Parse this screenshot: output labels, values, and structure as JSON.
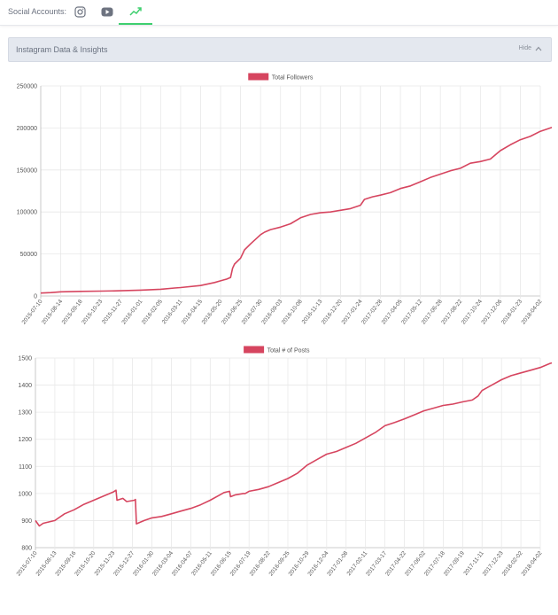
{
  "header": {
    "social_label": "Social Accounts:",
    "tabs": [
      {
        "name": "instagram-icon",
        "active": false
      },
      {
        "name": "youtube-icon",
        "active": false
      },
      {
        "name": "insights-icon",
        "active": true
      }
    ],
    "accent_color": "#3ecf6e"
  },
  "panel": {
    "title": "Instagram Data & Insights",
    "hide_label": "Hide"
  },
  "chart_data": [
    {
      "type": "line",
      "legend": "Total Followers",
      "legend_placement": "top-center",
      "color": "#d6455f",
      "grid": true,
      "ylim": [
        0,
        250000
      ],
      "yticks": [
        "0",
        "50000",
        "100000",
        "150000",
        "200000",
        "250000"
      ],
      "xticks": [
        "2015-07-10",
        "2015-08-14",
        "2015-09-18",
        "2015-10-23",
        "2015-11-27",
        "2016-01-01",
        "2016-02-05",
        "2016-03-11",
        "2016-04-15",
        "2016-05-20",
        "2016-06-25",
        "2016-07-30",
        "2016-09-03",
        "2016-10-08",
        "2016-11-13",
        "2016-12-20",
        "2017-01-24",
        "2017-02-28",
        "2017-04-05",
        "2017-05-12",
        "2017-06-28",
        "2017-08-22",
        "2017-10-24",
        "2017-12-06",
        "2018-01-23",
        "2018-04-02"
      ],
      "series": [
        {
          "points": [
            [
              0,
              3500
            ],
            [
              0.5,
              4000
            ],
            [
              1,
              5000
            ],
            [
              2,
              5500
            ],
            [
              3,
              5800
            ],
            [
              4,
              6200
            ],
            [
              5,
              7000
            ],
            [
              6,
              8000
            ],
            [
              6.7,
              9500
            ],
            [
              7,
              10000
            ],
            [
              8,
              12500
            ],
            [
              8.7,
              16000
            ],
            [
              9,
              18000
            ],
            [
              9.3,
              20000
            ],
            [
              9.5,
              22000
            ],
            [
              9.6,
              33000
            ],
            [
              9.7,
              38000
            ],
            [
              10,
              45000
            ],
            [
              10.2,
              55000
            ],
            [
              10.5,
              62000
            ],
            [
              11,
              73000
            ],
            [
              11.2,
              76000
            ],
            [
              11.5,
              79000
            ],
            [
              12,
              82000
            ],
            [
              12.5,
              86000
            ],
            [
              13,
              93000
            ],
            [
              13.5,
              97000
            ],
            [
              14,
              99000
            ],
            [
              14.5,
              100000
            ],
            [
              15,
              102000
            ],
            [
              15.5,
              104000
            ],
            [
              16,
              108000
            ],
            [
              16.2,
              115000
            ],
            [
              16.6,
              118000
            ],
            [
              17,
              120000
            ],
            [
              17.5,
              123000
            ],
            [
              18,
              128000
            ],
            [
              18.5,
              131000
            ],
            [
              19,
              136000
            ],
            [
              19.5,
              141000
            ],
            [
              20,
              145000
            ],
            [
              20.5,
              149000
            ],
            [
              21,
              152000
            ],
            [
              21.5,
              158000
            ],
            [
              22,
              160000
            ],
            [
              22.5,
              163000
            ],
            [
              23,
              173000
            ],
            [
              23.5,
              180000
            ],
            [
              24,
              186000
            ],
            [
              24.5,
              190000
            ],
            [
              25,
              196000
            ],
            [
              25.5,
              200000
            ],
            [
              26,
              204000
            ],
            [
              26.5,
              210000
            ],
            [
              27,
              214000
            ],
            [
              27.3,
              216000
            ]
          ]
        }
      ]
    },
    {
      "type": "line",
      "legend": "Total # of Posts",
      "legend_placement": "top-center",
      "color": "#d6455f",
      "grid": true,
      "ylim": [
        800,
        1500
      ],
      "yticks": [
        "800",
        "900",
        "1000",
        "1100",
        "1200",
        "1300",
        "1400",
        "1500"
      ],
      "xticks": [
        "2015-07-10",
        "2015-08-13",
        "2015-09-16",
        "2015-10-20",
        "2015-11-23",
        "2015-12-27",
        "2016-01-30",
        "2016-03-04",
        "2016-04-07",
        "2016-05-11",
        "2016-06-15",
        "2016-07-19",
        "2016-08-22",
        "2016-09-25",
        "2016-10-29",
        "2016-12-04",
        "2017-01-08",
        "2017-02-11",
        "2017-03-17",
        "2017-04-22",
        "2017-06-02",
        "2017-07-18",
        "2017-09-19",
        "2017-11-11",
        "2017-12-23",
        "2018-02-02",
        "2018-04-02"
      ],
      "series": [
        {
          "points": [
            [
              0,
              900
            ],
            [
              0.2,
              880
            ],
            [
              0.4,
              890
            ],
            [
              1,
              900
            ],
            [
              1.5,
              925
            ],
            [
              2,
              940
            ],
            [
              2.5,
              960
            ],
            [
              3,
              975
            ],
            [
              3.5,
              990
            ],
            [
              4,
              1005
            ],
            [
              4.15,
              1012
            ],
            [
              4.2,
              975
            ],
            [
              4.5,
              982
            ],
            [
              4.7,
              970
            ],
            [
              5.1,
              975
            ],
            [
              5.15,
              978
            ],
            [
              5.2,
              888
            ],
            [
              5.6,
              900
            ],
            [
              6,
              910
            ],
            [
              6.5,
              915
            ],
            [
              7,
              925
            ],
            [
              7.5,
              935
            ],
            [
              8,
              945
            ],
            [
              8.5,
              958
            ],
            [
              9,
              975
            ],
            [
              9.5,
              995
            ],
            [
              9.7,
              1003
            ],
            [
              10,
              1008
            ],
            [
              10.05,
              988
            ],
            [
              10.3,
              995
            ],
            [
              10.7,
              1000
            ],
            [
              10.8,
              1000
            ],
            [
              11,
              1008
            ],
            [
              11.5,
              1015
            ],
            [
              12,
              1025
            ],
            [
              12.5,
              1040
            ],
            [
              13,
              1055
            ],
            [
              13.5,
              1075
            ],
            [
              14,
              1105
            ],
            [
              14.5,
              1125
            ],
            [
              15,
              1145
            ],
            [
              15.5,
              1155
            ],
            [
              16,
              1170
            ],
            [
              16.5,
              1185
            ],
            [
              17,
              1205
            ],
            [
              17.5,
              1225
            ],
            [
              18,
              1250
            ],
            [
              18.5,
              1262
            ],
            [
              19,
              1275
            ],
            [
              19.5,
              1290
            ],
            [
              20,
              1305
            ],
            [
              20.5,
              1315
            ],
            [
              21,
              1325
            ],
            [
              21.5,
              1330
            ],
            [
              22,
              1338
            ],
            [
              22.5,
              1345
            ],
            [
              22.8,
              1360
            ],
            [
              23,
              1380
            ],
            [
              23.5,
              1400
            ],
            [
              24,
              1420
            ],
            [
              24.5,
              1435
            ],
            [
              25,
              1445
            ],
            [
              25.5,
              1455
            ],
            [
              26,
              1465
            ],
            [
              26.5,
              1480
            ],
            [
              27,
              1490
            ],
            [
              27.4,
              1500
            ]
          ]
        }
      ]
    }
  ]
}
